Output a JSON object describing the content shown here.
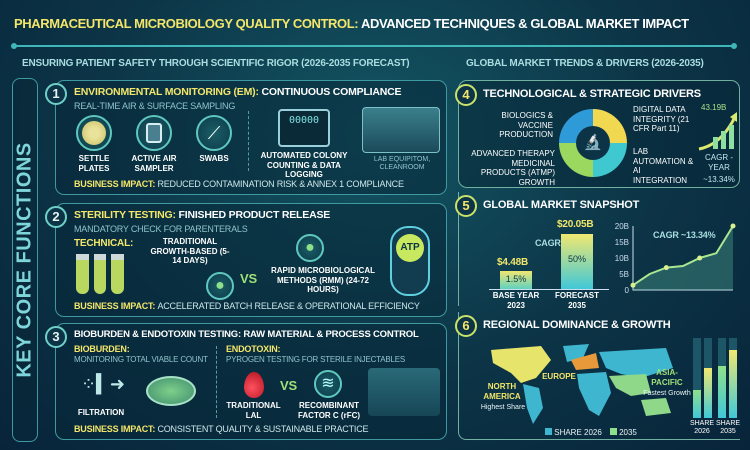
{
  "title": {
    "part1": "PHARMACEUTICAL MICROBIOLOGY QUALITY CONTROL:",
    "part2": "ADVANCED TECHNIQUES & GLOBAL MARKET IMPACT"
  },
  "left_subtitle": "ENSURING PATIENT SAFETY THROUGH SCIENTIFIC RIGOR (2026-2035 FORECAST)",
  "right_subtitle": "GLOBAL MARKET TRENDS & DRIVERS (2026-2035)",
  "side_label": "KEY CORE FUNCTIONS",
  "colors": {
    "accent_yellow": "#f3e66a",
    "teal": "#3fb6b8",
    "background": "#0c3446"
  },
  "section1": {
    "number": "1",
    "title_highlight": "ENVIRONMENTAL MONITORING (EM):",
    "title_rest": "CONTINUOUS COMPLIANCE",
    "subtitle": "REAL-TIME AIR & SURFACE SAMPLING",
    "items": [
      {
        "label": "SETTLE PLATES",
        "icon": "petri-dish-icon"
      },
      {
        "label": "ACTIVE AIR SAMPLER",
        "icon": "air-sampler-icon"
      },
      {
        "label": "SWABS",
        "icon": "swab-icon"
      }
    ],
    "automation_label": "AUTOMATED COLONY COUNTING & DATA LOGGING",
    "monitor_readout": "00000",
    "lab_label": "LAB EQUIPITOM, CLEANROOM",
    "impact_label": "BUSINESS IMPACT:",
    "impact_text": "REDUCED CONTAMINATION RISK & ANNEX 1 COMPLIANCE"
  },
  "section2": {
    "number": "2",
    "title_highlight": "STERILITY TESTING:",
    "title_rest": "FINISHED PRODUCT RELEASE",
    "subtitle": "MANDATORY CHECK FOR PARENTERALS",
    "technical_label": "TECHNICAL:",
    "traditional": "TRADITIONAL GROWTH-BASED (5-14 DAYS)",
    "vs": "VS",
    "rapid": "RAPID MICROBIOLOGICAL METHODS (RMM) (24-72 HOURS)",
    "device_label": "ATP",
    "impact_label": "BUSINESS IMPACT:",
    "impact_text": "ACCELERATED BATCH RELEASE & OPERATIONAL EFFICIENCY"
  },
  "section3": {
    "number": "3",
    "title": "BIOBURDEN & ENDOTOXIN TESTING: RAW MATERIAL & PROCESS CONTROL",
    "bioburden_label": "BIOBURDEN:",
    "bioburden_text": "MONITORING TOTAL VIABLE COUNT",
    "filtration": "FILTRATION",
    "endotoxin_label": "ENDOTOXIN:",
    "endotoxin_text": "PYROGEN TESTING FOR STERILE INJECTABLES",
    "lal": "TRADITIONAL LAL",
    "vs": "VS",
    "rfc": "RECOMBINANT FACTOR C (rFC)",
    "impact_label": "BUSINESS IMPACT:",
    "impact_text": "CONSISTENT QUALITY & SUSTAINABLE PRACTICE"
  },
  "section4": {
    "number": "4",
    "title": "TECHNOLOGICAL & STRATEGIC DRIVERS",
    "drivers": [
      "BIOLOGICS & VACCINE PRODUCTION",
      "DIGITAL DATA INTEGRITY (21 CFR Part 11)",
      "ADVANCED THERAPY MEDICINAL PRODUCTS (ATMP) GROWTH",
      "LAB AUTOMATION & AI INTEGRATION"
    ],
    "trend_value": "43.19B",
    "cagr_label": "CAGR -YEAR",
    "cagr_value": "~13.34%"
  },
  "section5": {
    "number": "5",
    "title": "GLOBAL MARKET SNAPSHOT",
    "cagr_arrow_label": "CAGR",
    "bars": [
      {
        "value_label": "$4.48B",
        "inner_label": "1.5%",
        "category": "BASE YEAR 2023",
        "value": 4.48
      },
      {
        "value_label": "$20.05B",
        "inner_label": "50%",
        "category": "FORECAST 2035",
        "value": 20.05
      }
    ],
    "line": {
      "y_ticks": [
        "0",
        "5B",
        "10B",
        "15B",
        "20B"
      ],
      "ylim": [
        0,
        20
      ],
      "values": [
        1.5,
        5,
        7,
        7.5,
        10,
        11.5,
        20
      ],
      "annotation": "CAGR ~13.34%"
    }
  },
  "section6": {
    "number": "6",
    "title": "REGIONAL DOMINANCE & GROWTH",
    "regions": [
      {
        "name": "NORTH AMERICA",
        "note": "Highest Share",
        "color": "#e6e46a"
      },
      {
        "name": "EUROPE",
        "note": "",
        "color": "#e89a3a"
      },
      {
        "name": "ASIA-PACIFIC",
        "note": "Fastest Growth",
        "color": "#8fd88a"
      }
    ],
    "legend": [
      {
        "label": "SHARE 2026",
        "color": "#3fb6d0"
      },
      {
        "label": "2035",
        "color": "#8fe08a"
      }
    ],
    "share_bars": [
      {
        "label": "SHARE 2026",
        "values": [
          0.35,
          0.62
        ]
      },
      {
        "label": "SHARE 2035",
        "values": [
          0.65,
          0.85
        ]
      }
    ]
  }
}
